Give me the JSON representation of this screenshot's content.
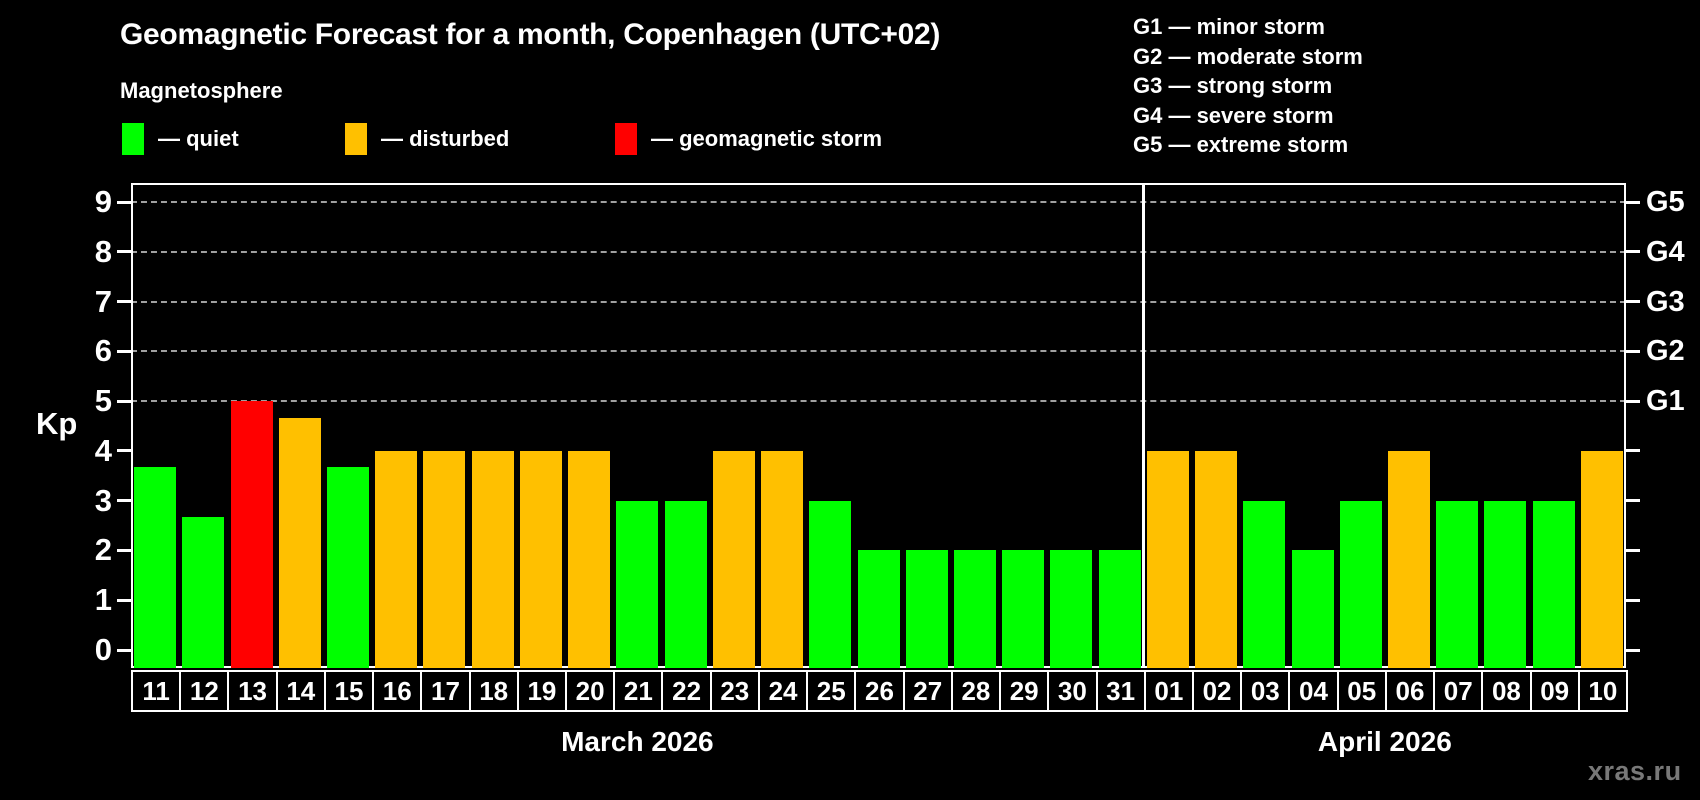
{
  "header": {
    "title": "Geomagnetic Forecast for a month, Copenhagen (UTC+02)",
    "subtitle": "Magnetosphere"
  },
  "legend": {
    "items": [
      {
        "state": "quiet",
        "label": "— quiet",
        "color": "#00ff00"
      },
      {
        "state": "disturbed",
        "label": "— disturbed",
        "color": "#ffc000"
      },
      {
        "state": "storm",
        "label": "— geomagnetic storm",
        "color": "#ff0000"
      }
    ]
  },
  "storm_scale": {
    "lines": [
      "G1 — minor storm",
      "G2 — moderate storm",
      "G3 — strong storm",
      "G4 — severe storm",
      "G5 — extreme storm"
    ]
  },
  "watermark": "xras.ru",
  "chart_data": {
    "type": "bar",
    "title": "Geomagnetic Forecast for a month, Copenhagen (UTC+02)",
    "ylabel": "Kp",
    "ylim": [
      0,
      9
    ],
    "yticks": [
      0,
      1,
      2,
      3,
      4,
      5,
      6,
      7,
      8,
      9
    ],
    "gridlines_at_kp": [
      5,
      6,
      7,
      8,
      9
    ],
    "grid": "dashed horizontal lines at storm levels only",
    "legend_position": "top",
    "right_axis": [
      {
        "kp": 5,
        "label": "G1"
      },
      {
        "kp": 6,
        "label": "G2"
      },
      {
        "kp": 7,
        "label": "G3"
      },
      {
        "kp": 8,
        "label": "G4"
      },
      {
        "kp": 9,
        "label": "G5"
      }
    ],
    "colors": {
      "quiet": "#00ff00",
      "disturbed": "#ffc000",
      "storm": "#ff0000"
    },
    "months": [
      {
        "label": "March 2026",
        "days": [
          {
            "date": "11",
            "kp": 3.67,
            "state": "quiet"
          },
          {
            "date": "12",
            "kp": 2.67,
            "state": "quiet"
          },
          {
            "date": "13",
            "kp": 5,
            "state": "storm"
          },
          {
            "date": "14",
            "kp": 4.67,
            "state": "disturbed"
          },
          {
            "date": "15",
            "kp": 3.67,
            "state": "quiet"
          },
          {
            "date": "16",
            "kp": 4,
            "state": "disturbed"
          },
          {
            "date": "17",
            "kp": 4,
            "state": "disturbed"
          },
          {
            "date": "18",
            "kp": 4,
            "state": "disturbed"
          },
          {
            "date": "19",
            "kp": 4,
            "state": "disturbed"
          },
          {
            "date": "20",
            "kp": 4,
            "state": "disturbed"
          },
          {
            "date": "21",
            "kp": 3,
            "state": "quiet"
          },
          {
            "date": "22",
            "kp": 3,
            "state": "quiet"
          },
          {
            "date": "23",
            "kp": 4,
            "state": "disturbed"
          },
          {
            "date": "24",
            "kp": 4,
            "state": "disturbed"
          },
          {
            "date": "25",
            "kp": 3,
            "state": "quiet"
          },
          {
            "date": "26",
            "kp": 2,
            "state": "quiet"
          },
          {
            "date": "27",
            "kp": 2,
            "state": "quiet"
          },
          {
            "date": "28",
            "kp": 2,
            "state": "quiet"
          },
          {
            "date": "29",
            "kp": 2,
            "state": "quiet"
          },
          {
            "date": "30",
            "kp": 2,
            "state": "quiet"
          },
          {
            "date": "31",
            "kp": 2,
            "state": "quiet"
          }
        ]
      },
      {
        "label": "April 2026",
        "days": [
          {
            "date": "01",
            "kp": 4,
            "state": "disturbed"
          },
          {
            "date": "02",
            "kp": 4,
            "state": "disturbed"
          },
          {
            "date": "03",
            "kp": 3,
            "state": "quiet"
          },
          {
            "date": "04",
            "kp": 2,
            "state": "quiet"
          },
          {
            "date": "05",
            "kp": 3,
            "state": "quiet"
          },
          {
            "date": "06",
            "kp": 4,
            "state": "disturbed"
          },
          {
            "date": "07",
            "kp": 3,
            "state": "quiet"
          },
          {
            "date": "08",
            "kp": 3,
            "state": "quiet"
          },
          {
            "date": "09",
            "kp": 3,
            "state": "quiet"
          },
          {
            "date": "10",
            "kp": 4,
            "state": "disturbed"
          }
        ]
      }
    ]
  }
}
